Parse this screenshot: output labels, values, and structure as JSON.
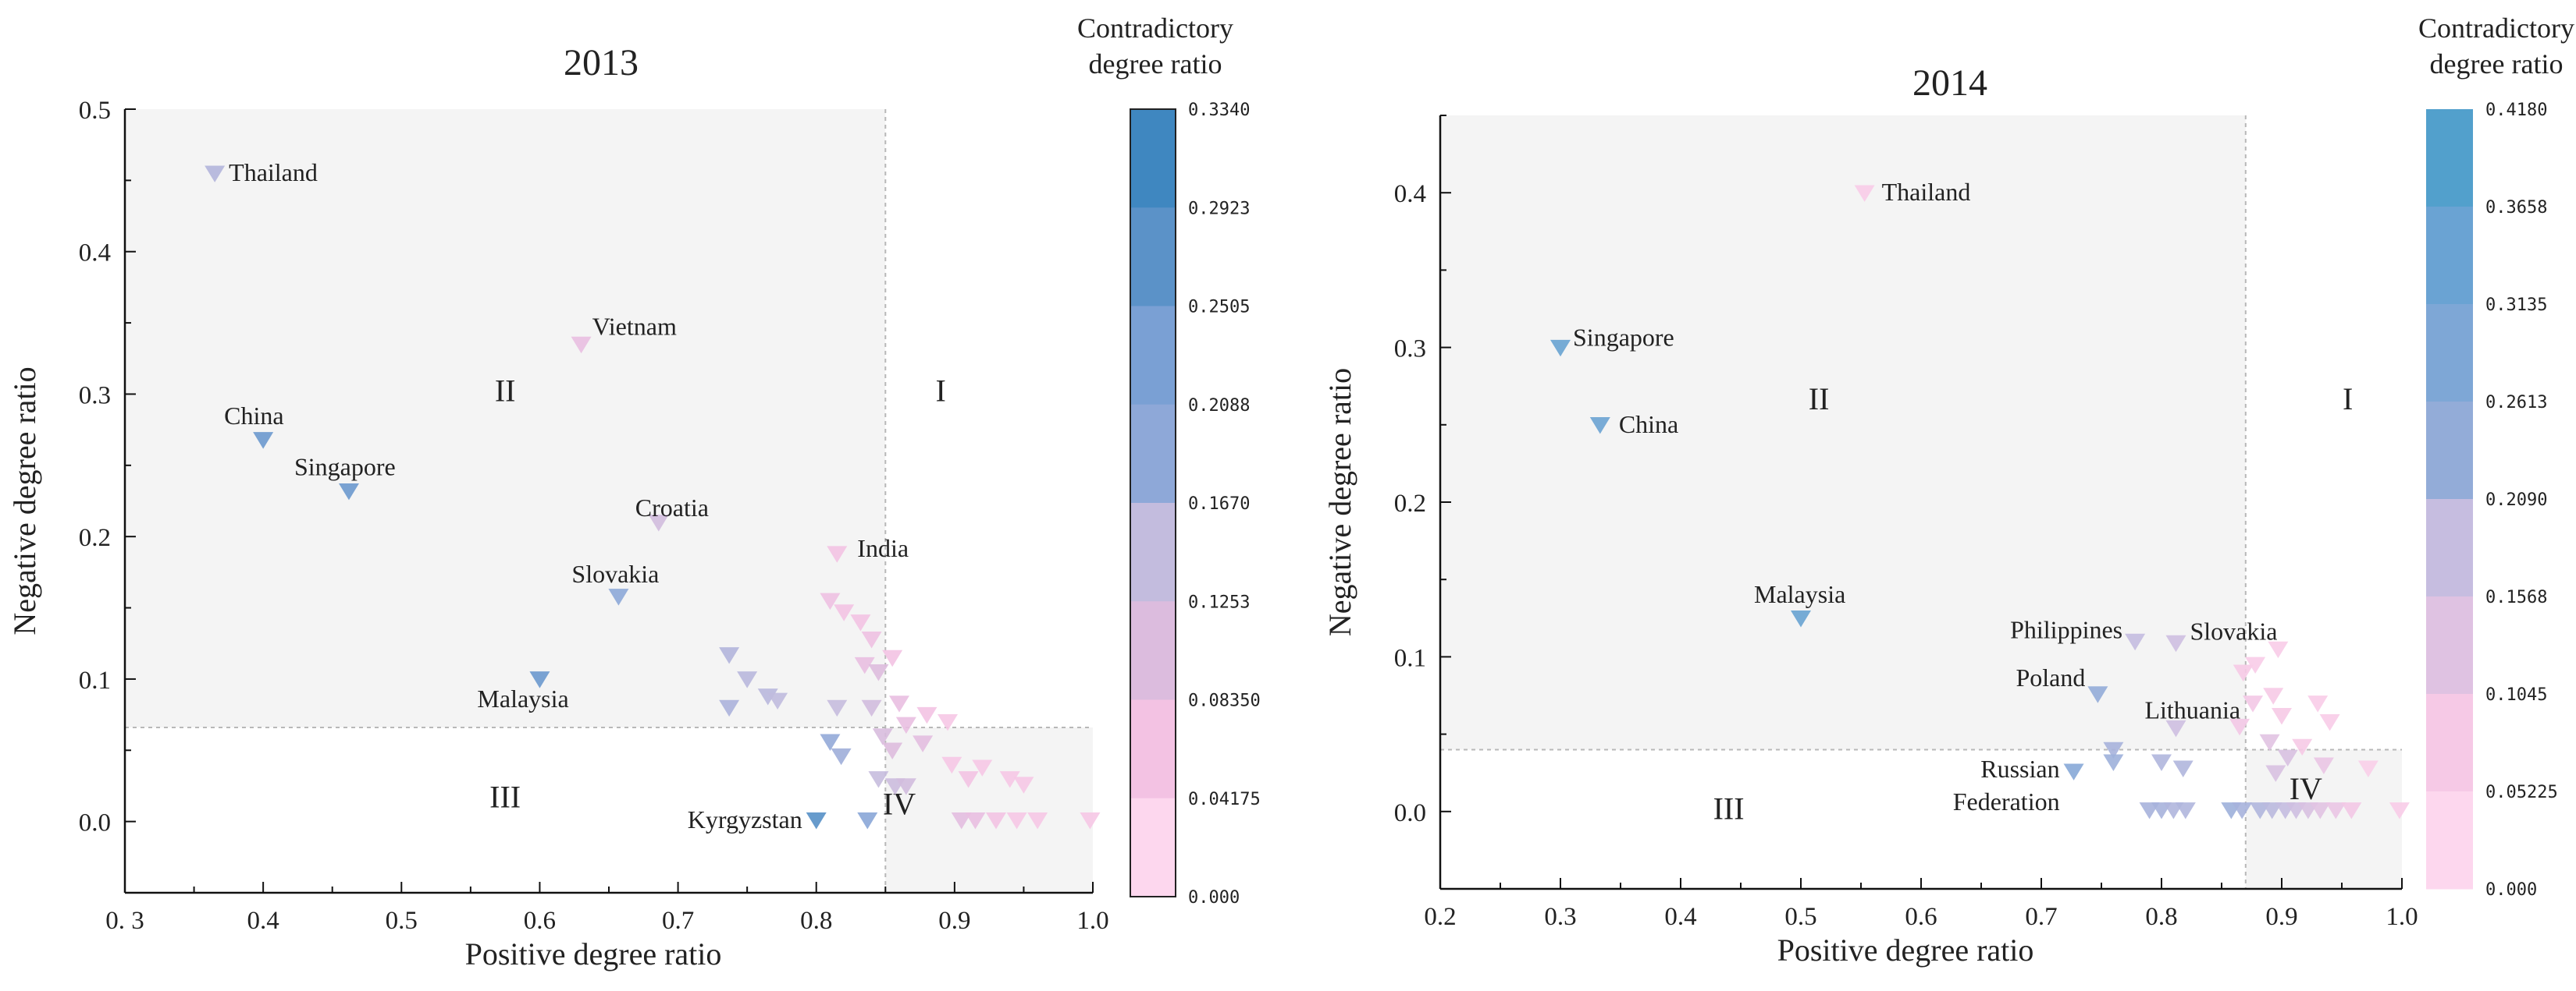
{
  "colors": {
    "background": "#ffffff",
    "quadrant_shade": "#f4f4f4",
    "divider": "#b8b8b8",
    "scale_2013": [
      "#fdd7ee",
      "#f3c2e3",
      "#dcbcde",
      "#c3bcde",
      "#a7b0da",
      "#8ea8d8",
      "#7aa0d4",
      "#5b92c8",
      "#3f87c0"
    ],
    "scale_2014": [
      "#fdd7ee",
      "#f6c9e6",
      "#dfc2e2",
      "#c6bde0",
      "#acb5dc",
      "#93acd8",
      "#7ea7d6",
      "#6aa3d3",
      "#52a0cc"
    ]
  },
  "chart_data": [
    {
      "type": "scatter",
      "title": "2013",
      "xlabel": "Positive degree ratio",
      "ylabel": "Negative degree ratio",
      "xlim": [
        0.3,
        1.0
      ],
      "ylim": [
        -0.05,
        0.5
      ],
      "xticks": [
        0.3,
        0.4,
        0.5,
        0.6,
        0.7,
        0.8,
        0.9,
        1.0
      ],
      "xtick_labels": [
        "0. 3",
        "0.4",
        "0.5",
        "0.6",
        "0.7",
        "0.8",
        "0.9",
        "1.0"
      ],
      "yticks": [
        0.0,
        0.1,
        0.2,
        0.3,
        0.4,
        0.5
      ],
      "ytick_labels": [
        "0.0",
        "0.1",
        "0.2",
        "0.3",
        "0.4",
        "0.5"
      ],
      "marker": "triangle-down",
      "divider": {
        "x": 0.85,
        "y": 0.066
      },
      "quadrant_labels": [
        {
          "text": "I",
          "x": 0.89,
          "y": 0.295
        },
        {
          "text": "II",
          "x": 0.575,
          "y": 0.295
        },
        {
          "text": "III",
          "x": 0.575,
          "y": 0.01
        },
        {
          "text": "IV",
          "x": 0.86,
          "y": 0.005
        }
      ],
      "colorbar": {
        "title": [
          "Contradictory",
          "degree ratio"
        ],
        "ticks": [
          "0.3340",
          "0.2923",
          "0.2505",
          "0.2088",
          "0.1670",
          "0.1253",
          "0.08350",
          "0.04175",
          "0.000"
        ],
        "range": [
          0.0,
          0.334
        ]
      },
      "points": [
        {
          "label": "Thailand",
          "x": 0.365,
          "y": 0.455,
          "c": 0.15
        },
        {
          "label": "Vietnam",
          "x": 0.63,
          "y": 0.335,
          "c": 0.06
        },
        {
          "label": "China",
          "x": 0.4,
          "y": 0.268,
          "c": 0.27
        },
        {
          "label": "Singapore",
          "x": 0.462,
          "y": 0.232,
          "c": 0.27
        },
        {
          "label": "Croatia",
          "x": 0.686,
          "y": 0.21,
          "c": 0.1
        },
        {
          "label": "India",
          "x": 0.815,
          "y": 0.188,
          "c": 0.04
        },
        {
          "label": "Slovakia",
          "x": 0.657,
          "y": 0.158,
          "c": 0.21
        },
        {
          "label": "Malaysia",
          "x": 0.6,
          "y": 0.1,
          "c": 0.27
        },
        {
          "label": "Kyrgyzstan",
          "x": 0.8,
          "y": 0.001,
          "c": 0.3
        },
        {
          "label": "",
          "x": 0.81,
          "y": 0.155,
          "c": 0.05
        },
        {
          "label": "",
          "x": 0.82,
          "y": 0.147,
          "c": 0.04
        },
        {
          "label": "",
          "x": 0.832,
          "y": 0.14,
          "c": 0.04
        },
        {
          "label": "",
          "x": 0.84,
          "y": 0.128,
          "c": 0.05
        },
        {
          "label": "",
          "x": 0.855,
          "y": 0.115,
          "c": 0.04
        },
        {
          "label": "",
          "x": 0.835,
          "y": 0.11,
          "c": 0.06
        },
        {
          "label": "",
          "x": 0.845,
          "y": 0.105,
          "c": 0.08
        },
        {
          "label": "",
          "x": 0.737,
          "y": 0.117,
          "c": 0.15
        },
        {
          "label": "",
          "x": 0.75,
          "y": 0.1,
          "c": 0.14
        },
        {
          "label": "",
          "x": 0.765,
          "y": 0.088,
          "c": 0.14
        },
        {
          "label": "",
          "x": 0.772,
          "y": 0.085,
          "c": 0.13
        },
        {
          "label": "",
          "x": 0.737,
          "y": 0.08,
          "c": 0.16
        },
        {
          "label": "",
          "x": 0.815,
          "y": 0.08,
          "c": 0.12
        },
        {
          "label": "",
          "x": 0.84,
          "y": 0.08,
          "c": 0.1
        },
        {
          "label": "",
          "x": 0.86,
          "y": 0.083,
          "c": 0.06
        },
        {
          "label": "",
          "x": 0.865,
          "y": 0.068,
          "c": 0.06
        },
        {
          "label": "",
          "x": 0.88,
          "y": 0.075,
          "c": 0.04
        },
        {
          "label": "",
          "x": 0.895,
          "y": 0.07,
          "c": 0.03
        },
        {
          "label": "",
          "x": 0.81,
          "y": 0.056,
          "c": 0.2
        },
        {
          "label": "",
          "x": 0.818,
          "y": 0.046,
          "c": 0.18
        },
        {
          "label": "",
          "x": 0.848,
          "y": 0.06,
          "c": 0.09
        },
        {
          "label": "",
          "x": 0.855,
          "y": 0.05,
          "c": 0.08
        },
        {
          "label": "",
          "x": 0.877,
          "y": 0.055,
          "c": 0.07
        },
        {
          "label": "",
          "x": 0.845,
          "y": 0.03,
          "c": 0.12
        },
        {
          "label": "",
          "x": 0.857,
          "y": 0.025,
          "c": 0.11
        },
        {
          "label": "",
          "x": 0.865,
          "y": 0.025,
          "c": 0.1
        },
        {
          "label": "",
          "x": 0.898,
          "y": 0.04,
          "c": 0.03
        },
        {
          "label": "",
          "x": 0.91,
          "y": 0.03,
          "c": 0.04
        },
        {
          "label": "",
          "x": 0.92,
          "y": 0.038,
          "c": 0.03
        },
        {
          "label": "",
          "x": 0.94,
          "y": 0.03,
          "c": 0.03
        },
        {
          "label": "",
          "x": 0.95,
          "y": 0.026,
          "c": 0.03
        },
        {
          "label": "",
          "x": 0.837,
          "y": 0.001,
          "c": 0.22
        },
        {
          "label": "",
          "x": 0.905,
          "y": 0.001,
          "c": 0.07
        },
        {
          "label": "",
          "x": 0.915,
          "y": 0.001,
          "c": 0.06
        },
        {
          "label": "",
          "x": 0.93,
          "y": 0.001,
          "c": 0.04
        },
        {
          "label": "",
          "x": 0.945,
          "y": 0.001,
          "c": 0.03
        },
        {
          "label": "",
          "x": 0.96,
          "y": 0.001,
          "c": 0.03
        },
        {
          "label": "",
          "x": 0.998,
          "y": 0.001,
          "c": 0.03
        }
      ]
    },
    {
      "type": "scatter",
      "title": "2014",
      "xlabel": "Positive degree ratio",
      "ylabel": "Negative degree ratio",
      "xlim": [
        0.2,
        1.0
      ],
      "ylim": [
        -0.05,
        0.45
      ],
      "xticks": [
        0.2,
        0.3,
        0.4,
        0.5,
        0.6,
        0.7,
        0.8,
        0.9,
        1.0
      ],
      "xtick_labels": [
        "0.2",
        "0.3",
        "0.4",
        "0.5",
        "0.6",
        "0.7",
        "0.8",
        "0.9",
        "1.0"
      ],
      "yticks": [
        0.0,
        0.1,
        0.2,
        0.3,
        0.4
      ],
      "ytick_labels": [
        "0.0",
        "0.1",
        "0.2",
        "0.3",
        "0.4"
      ],
      "marker": "triangle-down",
      "divider": {
        "x": 0.87,
        "y": 0.04
      },
      "quadrant_labels": [
        {
          "text": "I",
          "x": 0.955,
          "y": 0.26
        },
        {
          "text": "II",
          "x": 0.515,
          "y": 0.26
        },
        {
          "text": "III",
          "x": 0.44,
          "y": -0.005
        },
        {
          "text": "IV",
          "x": 0.92,
          "y": 0.008
        }
      ],
      "colorbar": {
        "title": [
          "Contradictory",
          "degree ratio"
        ],
        "ticks": [
          "0.4180",
          "0.3658",
          "0.3135",
          "0.2613",
          "0.2090",
          "0.1568",
          "0.1045",
          "0.05225",
          "0.000"
        ],
        "range": [
          0.0,
          0.418
        ]
      },
      "points": [
        {
          "label": "Thailand",
          "x": 0.553,
          "y": 0.4,
          "c": 0.04
        },
        {
          "label": "Singapore",
          "x": 0.3,
          "y": 0.3,
          "c": 0.37
        },
        {
          "label": "China",
          "x": 0.333,
          "y": 0.25,
          "c": 0.36
        },
        {
          "label": "Malaysia",
          "x": 0.5,
          "y": 0.125,
          "c": 0.37
        },
        {
          "label": "Philippines",
          "x": 0.778,
          "y": 0.11,
          "c": 0.16
        },
        {
          "label": "Slovakia",
          "x": 0.812,
          "y": 0.109,
          "c": 0.14
        },
        {
          "label": "Poland",
          "x": 0.747,
          "y": 0.076,
          "c": 0.26
        },
        {
          "label": "Lithuania",
          "x": 0.812,
          "y": 0.054,
          "c": 0.14
        },
        {
          "label": "Russian\nFederation",
          "x": 0.727,
          "y": 0.026,
          "c": 0.29
        },
        {
          "label": "",
          "x": 0.76,
          "y": 0.04,
          "c": 0.22
        },
        {
          "label": "",
          "x": 0.76,
          "y": 0.032,
          "c": 0.24
        },
        {
          "label": "",
          "x": 0.8,
          "y": 0.032,
          "c": 0.2
        },
        {
          "label": "",
          "x": 0.818,
          "y": 0.028,
          "c": 0.2
        },
        {
          "label": "",
          "x": 0.865,
          "y": 0.055,
          "c": 0.06
        },
        {
          "label": "",
          "x": 0.868,
          "y": 0.09,
          "c": 0.05
        },
        {
          "label": "",
          "x": 0.878,
          "y": 0.095,
          "c": 0.04
        },
        {
          "label": "",
          "x": 0.897,
          "y": 0.105,
          "c": 0.04
        },
        {
          "label": "",
          "x": 0.893,
          "y": 0.075,
          "c": 0.05
        },
        {
          "label": "",
          "x": 0.876,
          "y": 0.07,
          "c": 0.06
        },
        {
          "label": "",
          "x": 0.9,
          "y": 0.062,
          "c": 0.05
        },
        {
          "label": "",
          "x": 0.93,
          "y": 0.07,
          "c": 0.04
        },
        {
          "label": "",
          "x": 0.94,
          "y": 0.058,
          "c": 0.04
        },
        {
          "label": "",
          "x": 0.917,
          "y": 0.042,
          "c": 0.05
        },
        {
          "label": "",
          "x": 0.89,
          "y": 0.045,
          "c": 0.1
        },
        {
          "label": "",
          "x": 0.905,
          "y": 0.035,
          "c": 0.12
        },
        {
          "label": "",
          "x": 0.895,
          "y": 0.025,
          "c": 0.12
        },
        {
          "label": "",
          "x": 0.935,
          "y": 0.03,
          "c": 0.08
        },
        {
          "label": "",
          "x": 0.972,
          "y": 0.028,
          "c": 0.03
        },
        {
          "label": "",
          "x": 0.79,
          "y": 0.001,
          "c": 0.22
        },
        {
          "label": "",
          "x": 0.8,
          "y": 0.001,
          "c": 0.22
        },
        {
          "label": "",
          "x": 0.81,
          "y": 0.001,
          "c": 0.2
        },
        {
          "label": "",
          "x": 0.82,
          "y": 0.001,
          "c": 0.2
        },
        {
          "label": "",
          "x": 0.858,
          "y": 0.001,
          "c": 0.24
        },
        {
          "label": "",
          "x": 0.867,
          "y": 0.001,
          "c": 0.22
        },
        {
          "label": "",
          "x": 0.882,
          "y": 0.001,
          "c": 0.2
        },
        {
          "label": "",
          "x": 0.892,
          "y": 0.001,
          "c": 0.18
        },
        {
          "label": "",
          "x": 0.903,
          "y": 0.001,
          "c": 0.16
        },
        {
          "label": "",
          "x": 0.912,
          "y": 0.001,
          "c": 0.14
        },
        {
          "label": "",
          "x": 0.922,
          "y": 0.001,
          "c": 0.12
        },
        {
          "label": "",
          "x": 0.932,
          "y": 0.001,
          "c": 0.1
        },
        {
          "label": "",
          "x": 0.945,
          "y": 0.001,
          "c": 0.08
        },
        {
          "label": "",
          "x": 0.958,
          "y": 0.001,
          "c": 0.06
        },
        {
          "label": "",
          "x": 0.998,
          "y": 0.001,
          "c": 0.04
        }
      ]
    }
  ]
}
